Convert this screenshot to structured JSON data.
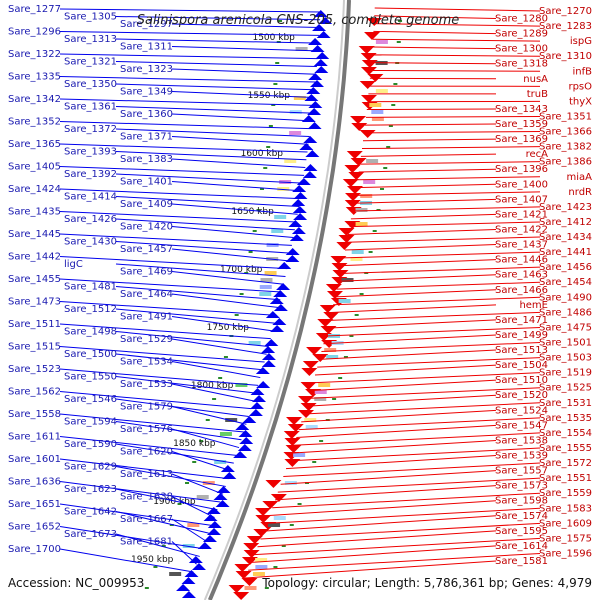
{
  "title": "Salinispora arenicola CNS-205, complete genome",
  "footer": {
    "accession": "Accession: NC_009953",
    "summary": "Topology: circular; Length: 5,786,361 bp; Genes: 4,979"
  },
  "scale_labels": [
    "1500 kbp",
    "1550 kbp",
    "1600 kbp",
    "1650 kbp",
    "1700 kbp",
    "1750 kbp",
    "1800 kbp",
    "1850 kbp",
    "1900 kbp",
    "1950 kbp"
  ],
  "colors": {
    "left_strand": "#0000ee",
    "right_strand": "#ee0000",
    "backbone": "#888888"
  },
  "left_labels": [
    "Sare_1277",
    "Sare_1305",
    "Sare_1297",
    "Sare_1296",
    "Sare_1313",
    "Sare_1311",
    "Sare_1322",
    "Sare_1321",
    "Sare_1323",
    "Sare_1335",
    "Sare_1350",
    "Sare_1349",
    "Sare_1342",
    "Sare_1361",
    "Sare_1360",
    "Sare_1352",
    "Sare_1372",
    "Sare_1371",
    "Sare_1365",
    "Sare_1393",
    "Sare_1383",
    "Sare_1405",
    "Sare_1392",
    "Sare_1401",
    "Sare_1424",
    "Sare_1414",
    "Sare_1409",
    "Sare_1435",
    "Sare_1426",
    "Sare_1420",
    "Sare_1445",
    "Sare_1430",
    "Sare_1457",
    "Sare_1442",
    "ligC",
    "Sare_1469",
    "Sare_1455",
    "Sare_1481",
    "Sare_1464",
    "Sare_1473",
    "Sare_1512",
    "Sare_1491",
    "Sare_1511",
    "Sare_1498",
    "Sare_1529",
    "Sare_1515",
    "Sare_1500",
    "Sare_1534",
    "Sare_1523",
    "Sare_1550",
    "Sare_1533",
    "Sare_1562",
    "Sare_1546",
    "Sare_1579",
    "Sare_1558",
    "Sare_1594",
    "Sare_1576",
    "Sare_1611",
    "Sare_1590",
    "Sare_1620",
    "Sare_1601",
    "Sare_1629",
    "Sare_1613",
    "Sare_1636",
    "Sare_1623",
    "Sare_1638",
    "Sare_1651",
    "Sare_1642",
    "Sare_1667",
    "Sare_1652",
    "Sare_1673",
    "Sare_1681",
    "Sare_1700"
  ],
  "right_labels": [
    "Sare_1270",
    "Sare_1280",
    "Sare_1283",
    "Sare_1289",
    "ispG",
    "Sare_1300",
    "Sare_1310",
    "Sare_1318",
    "infB",
    "nusA",
    "rpsO",
    "truB",
    "thyX",
    "Sare_1343",
    "Sare_1351",
    "Sare_1359",
    "Sare_1366",
    "Sare_1369",
    "Sare_1382",
    "recA",
    "Sare_1386",
    "Sare_1396",
    "miaA",
    "Sare_1400",
    "nrdR",
    "Sare_1407",
    "Sare_1423",
    "Sare_1421",
    "Sare_1412",
    "Sare_1422",
    "Sare_1434",
    "Sare_1437",
    "Sare_1441",
    "Sare_1446",
    "Sare_1456",
    "Sare_1463",
    "Sare_1454",
    "Sare_1466",
    "Sare_1490",
    "hemE",
    "Sare_1486",
    "Sare_1471",
    "Sare_1475",
    "Sare_1499",
    "Sare_1501",
    "Sare_1513",
    "Sare_1503",
    "Sare_1504",
    "Sare_1519",
    "Sare_1510",
    "Sare_1525",
    "Sare_1520",
    "Sare_1531",
    "Sare_1524",
    "Sare_1535",
    "Sare_1547",
    "Sare_1554",
    "Sare_1538",
    "Sare_1555",
    "Sare_1539",
    "Sare_1572",
    "Sare_1557",
    "Sare_1551",
    "Sare_1573",
    "Sare_1559",
    "Sare_1598",
    "Sare_1583",
    "Sare_1574",
    "Sare_1609",
    "Sare_1595",
    "Sare_1575",
    "Sare_1614",
    "Sare_1596",
    "Sare_1581"
  ]
}
